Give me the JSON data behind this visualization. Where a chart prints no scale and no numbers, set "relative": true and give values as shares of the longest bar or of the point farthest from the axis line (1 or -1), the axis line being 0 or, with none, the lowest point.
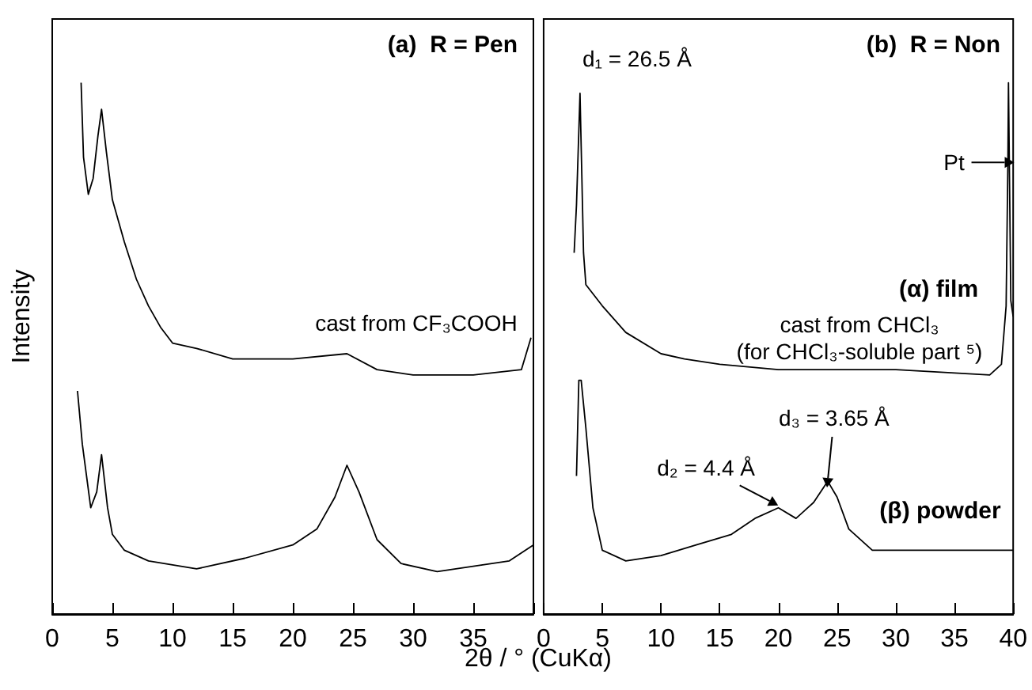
{
  "chart_data": [
    {
      "type": "line",
      "title": "(a)  R = Pen",
      "xlabel": "2θ / °  (CuKα)",
      "ylabel": "Intensity",
      "relative": true,
      "marker": "none",
      "tick_labels": "x",
      "xlim": [
        0,
        40
      ],
      "xticks": [
        0,
        5,
        10,
        15,
        20,
        25,
        30,
        35,
        {
          "value": 40,
          "label": null
        }
      ],
      "series": [
        {
          "color": "#000000",
          "x": [
            2.4,
            2.6,
            3.0,
            3.4,
            3.8,
            4.1,
            4.5,
            5,
            6,
            7,
            8,
            9,
            10,
            12,
            15,
            20,
            24.5,
            27,
            30,
            35,
            39,
            39.8
          ],
          "values": [
            1.0,
            0.86,
            0.79,
            0.82,
            0.9,
            0.95,
            0.87,
            0.78,
            0.7,
            0.63,
            0.58,
            0.54,
            0.51,
            0.5,
            0.48,
            0.48,
            0.49,
            0.46,
            0.45,
            0.45,
            0.46,
            0.52
          ]
        },
        {
          "color": "#000000",
          "x": [
            2.1,
            2.5,
            3.2,
            3.7,
            4.1,
            4.6,
            5,
            6,
            8,
            12,
            16,
            20,
            22,
            23.5,
            24.5,
            25.5,
            27,
            29,
            32,
            35,
            38,
            40
          ],
          "values": [
            0.42,
            0.32,
            0.2,
            0.23,
            0.3,
            0.2,
            0.15,
            0.12,
            0.1,
            0.085,
            0.105,
            0.13,
            0.16,
            0.22,
            0.28,
            0.23,
            0.14,
            0.095,
            0.08,
            0.09,
            0.1,
            0.13
          ]
        }
      ],
      "annotations": [
        "cast from CF₃COOH"
      ]
    },
    {
      "type": "line",
      "title": "(b)  R = Non",
      "relative": true,
      "marker": "none",
      "tick_labels": "x",
      "xlim": [
        0,
        40
      ],
      "xticks": [
        0,
        5,
        10,
        15,
        20,
        25,
        30,
        35,
        40
      ],
      "series": [
        {
          "color": "#000000",
          "x": [
            2.6,
            2.8,
            3.1,
            3.4,
            3.6,
            5,
            7,
            10,
            12,
            15,
            20,
            25,
            30,
            38,
            39,
            39.4,
            39.55,
            39.6,
            39.8,
            40
          ],
          "values": [
            0.68,
            0.77,
            0.98,
            0.68,
            0.62,
            0.58,
            0.53,
            0.49,
            0.48,
            0.47,
            0.46,
            0.46,
            0.46,
            0.45,
            0.47,
            0.58,
            0.85,
            1.0,
            0.59,
            0.56
          ]
        },
        {
          "color": "#000000",
          "x": [
            2.8,
            3.0,
            3.2,
            3.6,
            4.2,
            5,
            7,
            10,
            13,
            16,
            18,
            20,
            21.5,
            23,
            24.2,
            25,
            26,
            28,
            32,
            36,
            40
          ],
          "values": [
            0.26,
            0.44,
            0.44,
            0.35,
            0.2,
            0.12,
            0.1,
            0.11,
            0.13,
            0.15,
            0.18,
            0.2,
            0.18,
            0.21,
            0.25,
            0.22,
            0.16,
            0.12,
            0.12,
            0.12,
            0.12
          ]
        }
      ],
      "annotations": [
        {
          "text": "d₁ = 26.5 Å",
          "x": 3.1,
          "y": 0.98
        },
        {
          "text": "Pt",
          "x": 39.55,
          "y": 0.85
        },
        "(α) film",
        "cast from CHCl₃",
        "(for CHCl₃-soluble part ⁵)",
        {
          "text": "d₃ = 3.65 Å",
          "x": 24.2,
          "y": 0.25
        },
        {
          "text": "d₂ = 4.4 Å",
          "x": 19.5,
          "y": 0.21
        },
        "(β) powder"
      ]
    }
  ]
}
